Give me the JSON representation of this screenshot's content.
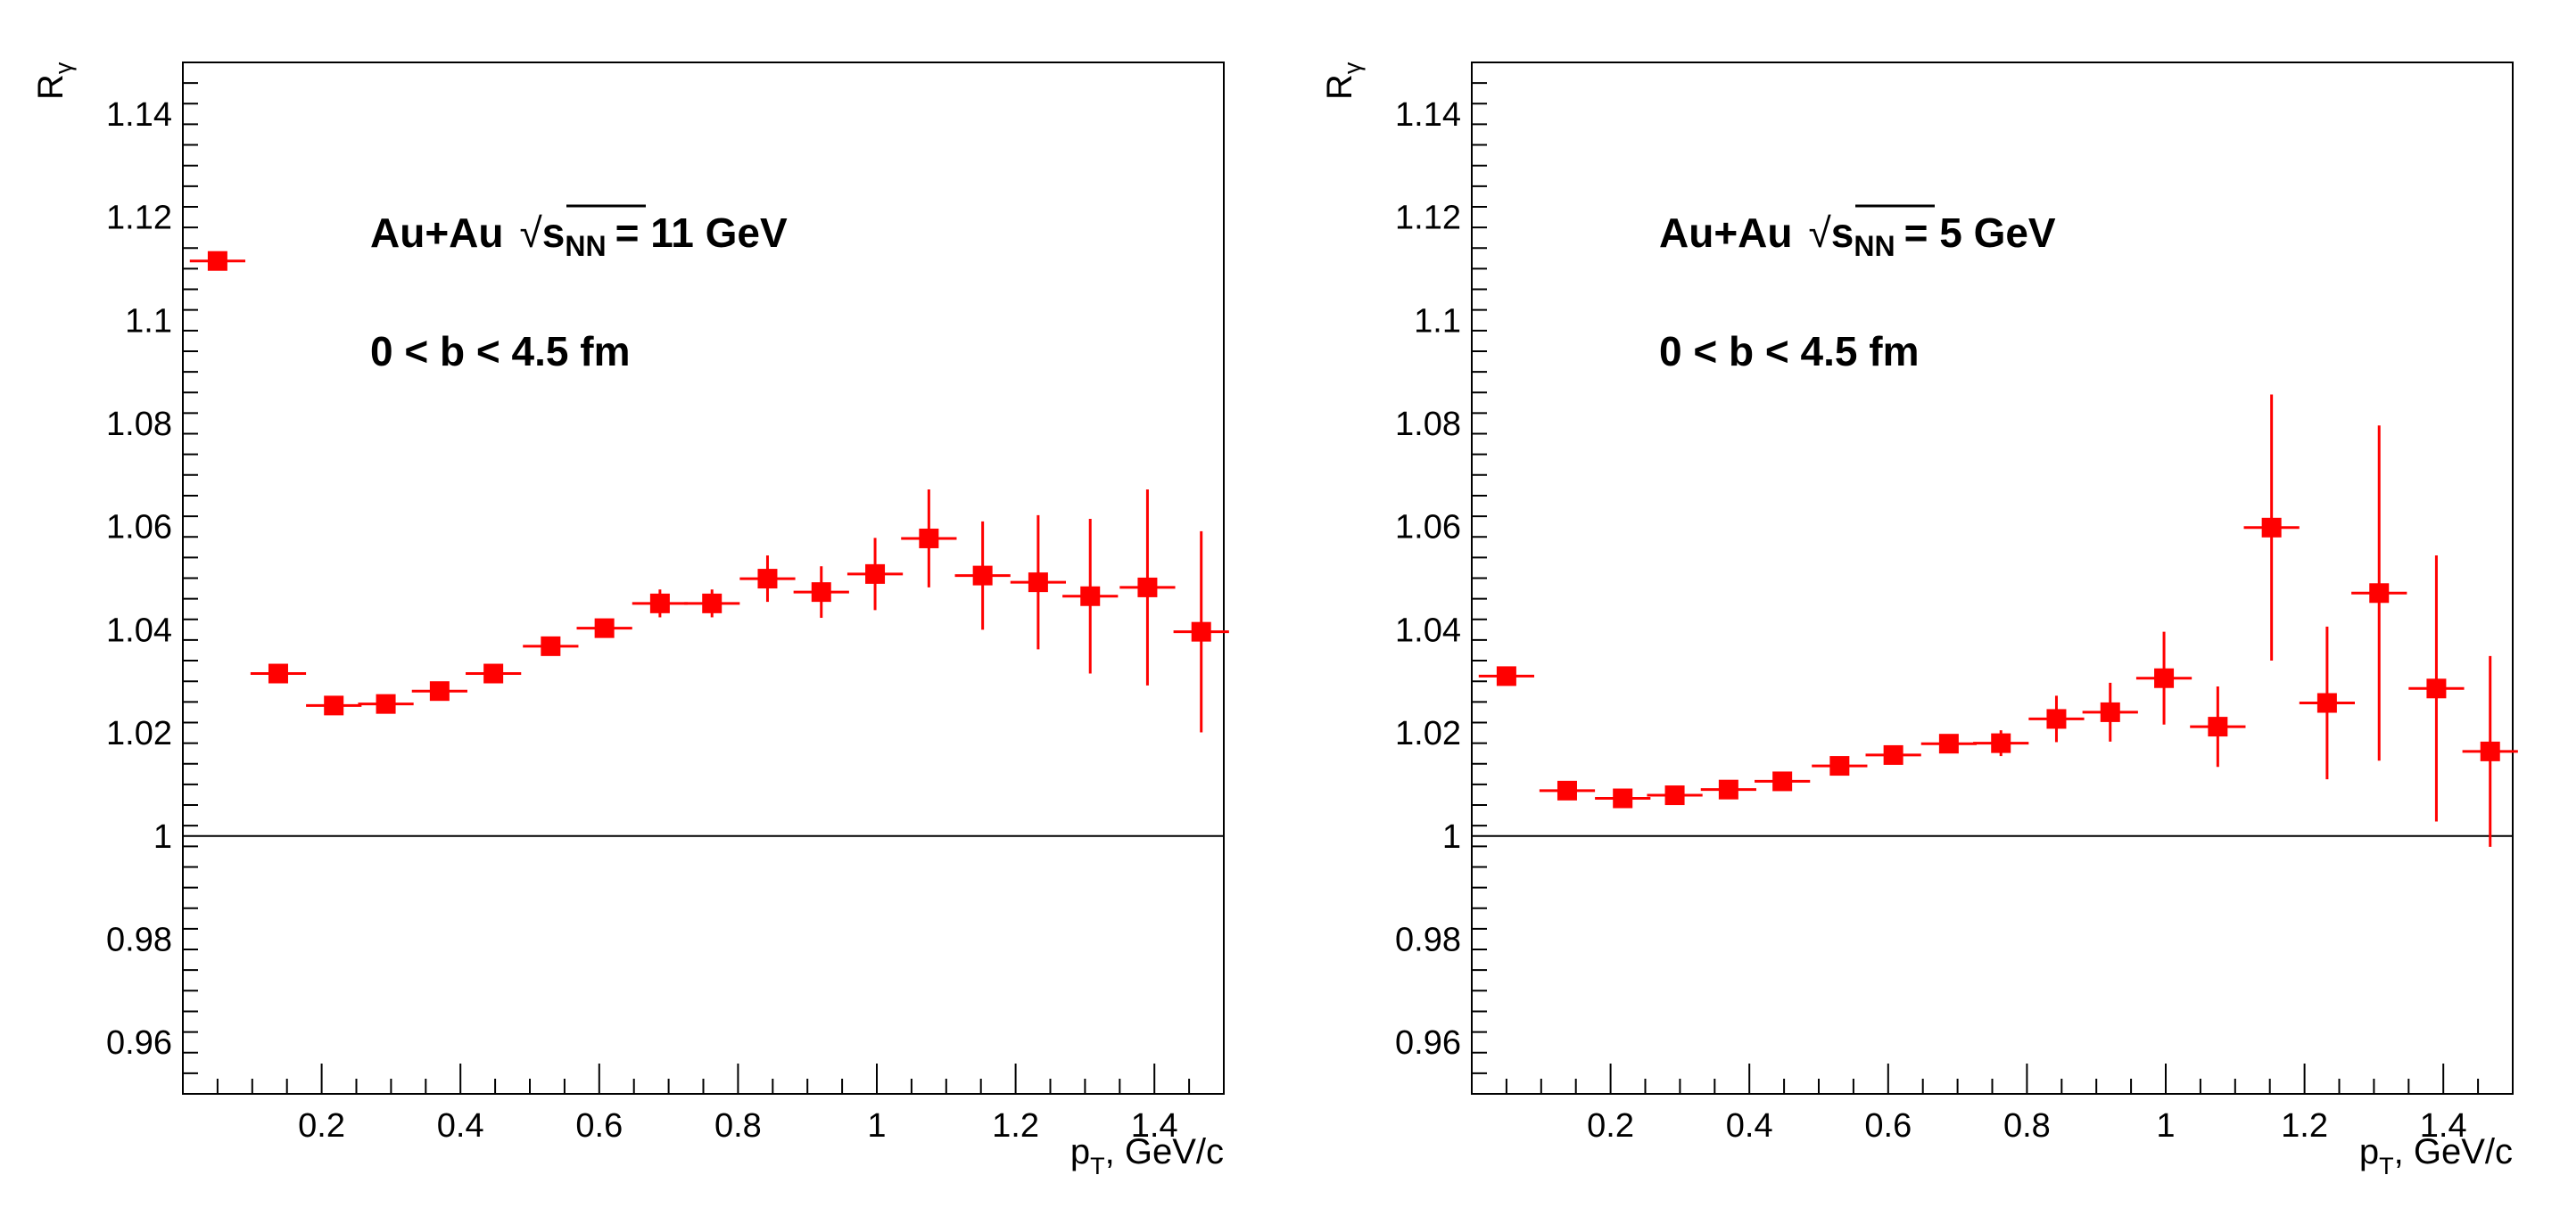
{
  "chart_data": [
    {
      "type": "scatter",
      "panel": "left",
      "ylabel": {
        "main": "R",
        "sub": "γ"
      },
      "xlabel": {
        "main": "p",
        "sub": "T",
        "rest": ", GeV/c"
      },
      "xlim": [
        0,
        1.5
      ],
      "ylim": [
        0.95,
        1.15
      ],
      "xticks": [
        0.2,
        0.4,
        0.6,
        0.8,
        1,
        1.2,
        1.4
      ],
      "xtick_labels": [
        "0.2",
        "0.4",
        "0.6",
        "0.8",
        "1",
        "1.2",
        "1.4"
      ],
      "yticks": [
        0.96,
        0.98,
        1,
        1.02,
        1.04,
        1.06,
        1.08,
        1.1,
        1.12,
        1.14
      ],
      "ytick_labels": [
        "0.96",
        "0.98",
        "1",
        "1.02",
        "1.04",
        "1.06",
        "1.08",
        "1.1",
        "1.12",
        "1.14"
      ],
      "reference_line": 1,
      "annotation": {
        "system": "Au+Au",
        "sqrt_symbol": "√",
        "s": "s",
        "s_sub": "NN",
        "energy": "= 11 GeV",
        "centrality": "0 < b < 4.5 fm"
      },
      "series": [
        {
          "name": "R_gamma",
          "color": "#ff0000",
          "x": [
            0.05,
            0.1375,
            0.2175,
            0.2925,
            0.37,
            0.4475,
            0.53,
            0.6075,
            0.6875,
            0.7625,
            0.8425,
            0.92,
            0.9975,
            1.075,
            1.1525,
            1.2325,
            1.3075,
            1.39,
            1.4675
          ],
          "xerr": [
            0.04,
            0.04,
            0.04,
            0.04,
            0.04,
            0.04,
            0.04,
            0.04,
            0.04,
            0.04,
            0.04,
            0.04,
            0.04,
            0.04,
            0.04,
            0.04,
            0.04,
            0.04,
            0.04
          ],
          "y": [
            1.1115,
            1.0315,
            1.0253,
            1.0256,
            1.0281,
            1.0315,
            1.0368,
            1.0403,
            1.0451,
            1.0451,
            1.0499,
            1.0473,
            1.0508,
            1.0577,
            1.0505,
            1.0492,
            1.0465,
            1.0482,
            1.0396
          ],
          "yerr": [
            0.0008,
            0.001,
            0.001,
            0.001,
            0.0012,
            0.0015,
            0.0015,
            0.0018,
            0.0027,
            0.0027,
            0.0045,
            0.005,
            0.007,
            0.0095,
            0.0105,
            0.013,
            0.015,
            0.019,
            0.0195
          ]
        }
      ]
    },
    {
      "type": "scatter",
      "panel": "right",
      "ylabel": {
        "main": "R",
        "sub": "γ"
      },
      "xlabel": {
        "main": "p",
        "sub": "T",
        "rest": ", GeV/c"
      },
      "xlim": [
        0,
        1.5
      ],
      "ylim": [
        0.95,
        1.15
      ],
      "xticks": [
        0.2,
        0.4,
        0.6,
        0.8,
        1,
        1.2,
        1.4
      ],
      "xtick_labels": [
        "0.2",
        "0.4",
        "0.6",
        "0.8",
        "1",
        "1.2",
        "1.4"
      ],
      "yticks": [
        0.96,
        0.98,
        1,
        1.02,
        1.04,
        1.06,
        1.08,
        1.1,
        1.12,
        1.14
      ],
      "ytick_labels": [
        "0.96",
        "0.98",
        "1",
        "1.02",
        "1.04",
        "1.06",
        "1.08",
        "1.1",
        "1.12",
        "1.14"
      ],
      "reference_line": 1,
      "annotation": {
        "system": "Au+Au",
        "sqrt_symbol": "√",
        "s": "s",
        "s_sub": "NN",
        "energy": "= 5 GeV",
        "centrality": "0 < b < 4.5 fm"
      },
      "series": [
        {
          "name": "R_gamma",
          "color": "#ff0000",
          "x": [
            0.05,
            0.1375,
            0.2175,
            0.2925,
            0.37,
            0.4475,
            0.53,
            0.6075,
            0.6875,
            0.7625,
            0.8425,
            0.92,
            0.9975,
            1.075,
            1.1525,
            1.2325,
            1.3075,
            1.39,
            1.4675
          ],
          "xerr": [
            0.04,
            0.04,
            0.04,
            0.04,
            0.04,
            0.04,
            0.04,
            0.04,
            0.04,
            0.04,
            0.04,
            0.04,
            0.04,
            0.04,
            0.04,
            0.04,
            0.04,
            0.04,
            0.04
          ],
          "y": [
            1.031,
            1.0088,
            1.0073,
            1.0079,
            1.009,
            1.0106,
            1.0136,
            1.0157,
            1.0179,
            1.018,
            1.0227,
            1.024,
            1.0306,
            1.0212,
            1.0598,
            1.0258,
            1.0471,
            1.0286,
            1.0164
          ],
          "yerr": [
            0.0008,
            0.0008,
            0.001,
            0.001,
            0.0012,
            0.0015,
            0.0015,
            0.0015,
            0.0017,
            0.0025,
            0.0045,
            0.0057,
            0.009,
            0.0078,
            0.0258,
            0.0148,
            0.0325,
            0.0258,
            0.0185
          ]
        }
      ]
    }
  ]
}
